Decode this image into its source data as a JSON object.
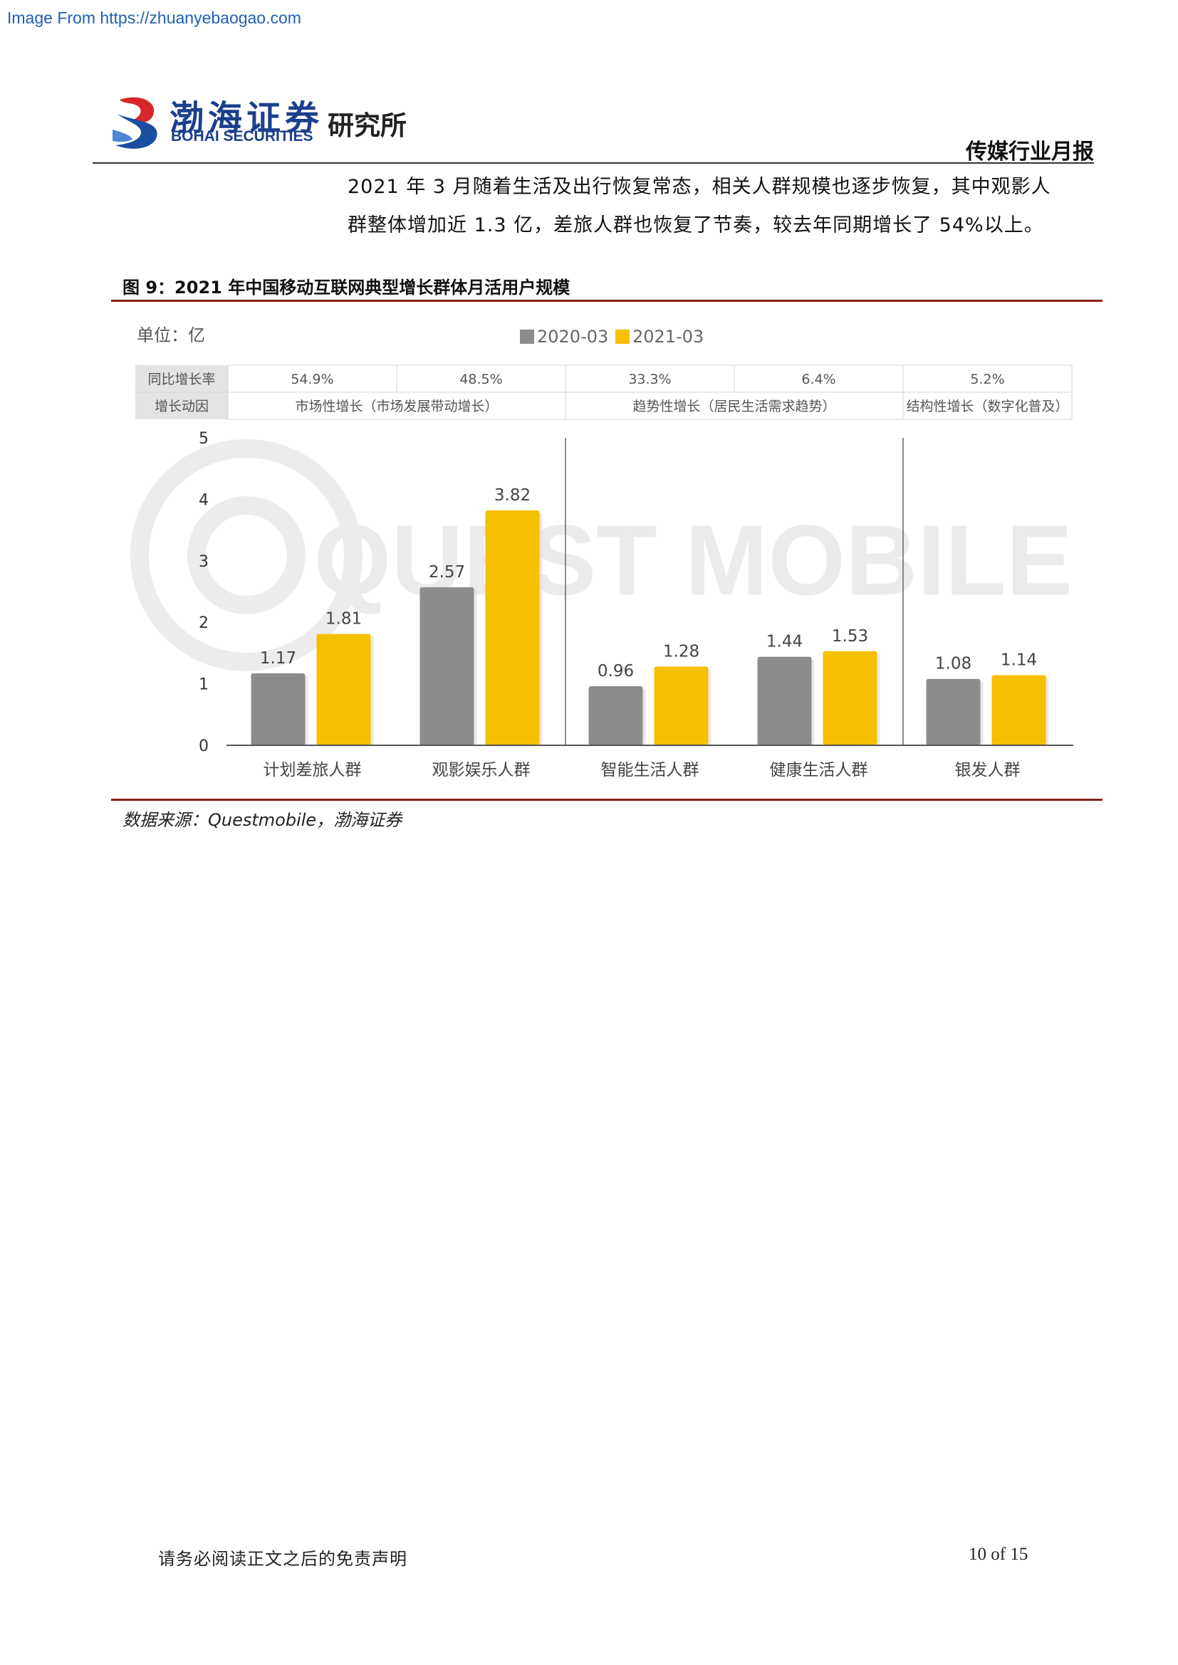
{
  "watermark_link": "Image From https://zhuanyebaogao.com",
  "header": {
    "logo_cn": "渤海证券",
    "logo_en": "BOHAI SECURITIES",
    "institute": "研究所",
    "report_type": "传媒行业月报"
  },
  "body": {
    "para_line1": "2021 年 3 月随着生活及出行恢复常态，相关人群规模也逐步恢复，其中观影人",
    "para_line2": "群整体增加近 1.3 亿，差旅人群也恢复了节奏，较去年同期增长了 54%以上。"
  },
  "figure": {
    "caption": "图 9：2021 年中国移动互联网典型增长群体月活用户规模",
    "source": "数据来源：Questmobile，渤海证券"
  },
  "chart_data": {
    "type": "bar",
    "unit_label": "单位：亿",
    "watermark": "QUEST MOBILE",
    "categories": [
      "计划差旅人群",
      "观影娱乐人群",
      "智能生活人群",
      "健康生活人群",
      "银发人群"
    ],
    "series": [
      {
        "name": "2020-03",
        "values": [
          1.17,
          2.57,
          0.96,
          1.44,
          1.08
        ],
        "color": "#8c8c8c"
      },
      {
        "name": "2021-03",
        "values": [
          1.81,
          3.82,
          1.28,
          1.53,
          1.14
        ],
        "color": "#f6bf00"
      }
    ],
    "data_labels_2020": [
      "1.17",
      "2.57",
      "0.96",
      "1.44",
      "1.08"
    ],
    "data_labels_2021": [
      "1.81",
      "3.82",
      "1.28",
      "1.53",
      "1.14"
    ],
    "ylim": [
      0,
      5
    ],
    "yticks": [
      "0",
      "1",
      "2",
      "3",
      "4",
      "5"
    ],
    "legend_position": "top-center",
    "table": {
      "row1_label": "同比增长率",
      "row1_values": [
        "54.9%",
        "48.5%",
        "33.3%",
        "6.4%",
        "5.2%"
      ],
      "row2_label": "增长动因",
      "row2_groups": [
        "市场性增长（市场发展带动增长）",
        "趋势性增长（居民生活需求趋势）",
        "结构性增长（数字化普及）"
      ]
    }
  },
  "footer": {
    "disclaimer": "请务必阅读正文之后的免责声明",
    "page": "10 of 15"
  }
}
